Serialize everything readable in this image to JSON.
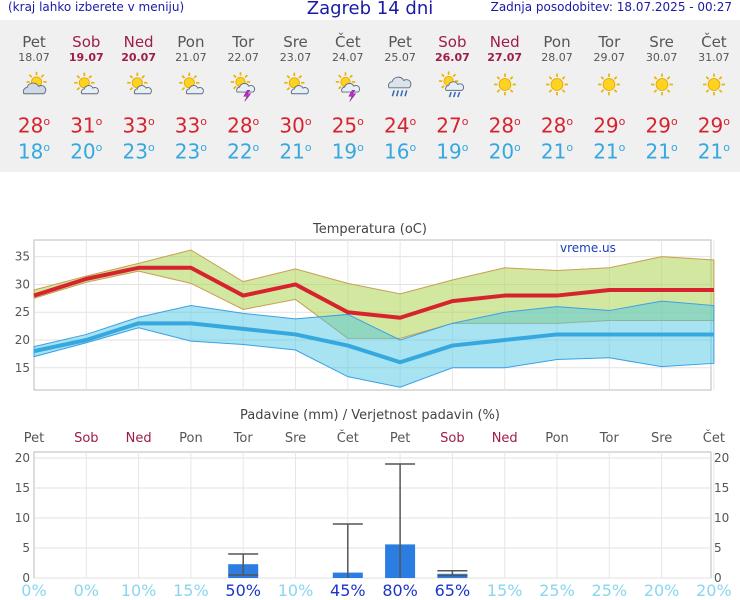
{
  "header": {
    "note": "(kraj lahko izberete v meniju)",
    "title": "Zagreb 14 dni",
    "updated": "Zadnja posodobitev: 18.07.2025 - 00:27"
  },
  "days": [
    {
      "name": "Pet",
      "date": "18.07",
      "weekend": false,
      "icon": "partly-cloudy-icon",
      "tmax": "28",
      "tmin": "18"
    },
    {
      "name": "Sob",
      "date": "19.07",
      "weekend": true,
      "icon": "sun-cloud-icon",
      "tmax": "31",
      "tmin": "20"
    },
    {
      "name": "Ned",
      "date": "20.07",
      "weekend": true,
      "icon": "sun-cloud-icon",
      "tmax": "33",
      "tmin": "23"
    },
    {
      "name": "Pon",
      "date": "21.07",
      "weekend": false,
      "icon": "sun-cloud-icon",
      "tmax": "33",
      "tmin": "23"
    },
    {
      "name": "Tor",
      "date": "22.07",
      "weekend": false,
      "icon": "thunderstorm-sun-icon",
      "tmax": "28",
      "tmin": "22"
    },
    {
      "name": "Sre",
      "date": "23.07",
      "weekend": false,
      "icon": "sun-cloud-icon",
      "tmax": "30",
      "tmin": "21"
    },
    {
      "name": "Čet",
      "date": "24.07",
      "weekend": false,
      "icon": "thunderstorm-sun-icon",
      "tmax": "25",
      "tmin": "19"
    },
    {
      "name": "Pet",
      "date": "25.07",
      "weekend": false,
      "icon": "rain-cloud-icon",
      "tmax": "24",
      "tmin": "16"
    },
    {
      "name": "Sob",
      "date": "26.07",
      "weekend": true,
      "icon": "sun-rain-icon",
      "tmax": "27",
      "tmin": "19"
    },
    {
      "name": "Ned",
      "date": "27.07",
      "weekend": true,
      "icon": "sun-icon",
      "tmax": "28",
      "tmin": "20"
    },
    {
      "name": "Pon",
      "date": "28.07",
      "weekend": false,
      "icon": "sun-icon",
      "tmax": "28",
      "tmin": "21"
    },
    {
      "name": "Tor",
      "date": "29.07",
      "weekend": false,
      "icon": "sun-icon",
      "tmax": "29",
      "tmin": "21"
    },
    {
      "name": "Sre",
      "date": "30.07",
      "weekend": false,
      "icon": "sun-icon",
      "tmax": "29",
      "tmin": "21"
    },
    {
      "name": "Čet",
      "date": "31.07",
      "weekend": false,
      "icon": "sun-icon",
      "tmax": "29",
      "tmin": "21"
    }
  ],
  "degree": "o",
  "colors": {
    "max": "#d6232e",
    "min": "#36a8e0",
    "weekend": "#9e1c4a",
    "bar": "#2b7de1"
  },
  "chart_data": [
    {
      "type": "line",
      "title": "Temperatura (oC)",
      "watermark": "vreme.us",
      "categories": [
        "Pet",
        "Sob",
        "Ned",
        "Pon",
        "Tor",
        "Sre",
        "Čet",
        "Pet",
        "Sob",
        "Ned",
        "Pon",
        "Tor",
        "Sre",
        "Čet"
      ],
      "ylim": [
        11,
        38
      ],
      "yticks": [
        "15",
        "20",
        "25",
        "30",
        "35"
      ],
      "series": [
        {
          "values": [
            28,
            31,
            33,
            33,
            28,
            30,
            25,
            24,
            27,
            28,
            28,
            29,
            29,
            29
          ]
        },
        {
          "values": [
            18,
            20,
            23,
            23,
            22,
            21,
            19,
            16,
            19,
            20,
            21,
            21,
            21,
            21
          ]
        }
      ],
      "bands": [
        {
          "upper": [
            29,
            31.5,
            33.8,
            36.2,
            30.5,
            32.8,
            30.2,
            28.3,
            30.8,
            33,
            32.5,
            33,
            35,
            34.4
          ],
          "lower": [
            27.5,
            30.4,
            32.4,
            30.2,
            25.5,
            27.3,
            20.3,
            20.3,
            23,
            23,
            23,
            23.5,
            23.5,
            23.5
          ]
        },
        {
          "upper": [
            18.8,
            21,
            24.1,
            26.2,
            24.8,
            23.8,
            24.6,
            20,
            23,
            25,
            26,
            25.3,
            27,
            26.2
          ],
          "lower": [
            17,
            19.5,
            22.2,
            19.8,
            19.2,
            18.2,
            13.4,
            11.5,
            15,
            15,
            16.5,
            16.8,
            15.2,
            15.8
          ]
        }
      ]
    },
    {
      "type": "bar",
      "title": "Padavine (mm) / Verjetnost padavin (%)",
      "categories": [
        "Pet",
        "Sob",
        "Ned",
        "Pon",
        "Tor",
        "Sre",
        "Čet",
        "Pet",
        "Sob",
        "Ned",
        "Pon",
        "Tor",
        "Sre",
        "Čet"
      ],
      "ylim": [
        0,
        21
      ],
      "yticks": [
        "0",
        "5",
        "10",
        "15",
        "20"
      ],
      "values": [
        0,
        0,
        0,
        0,
        2.3,
        0,
        0.9,
        5.6,
        0.7,
        0,
        0,
        0,
        0,
        0
      ],
      "error_high": [
        0,
        0,
        0,
        0,
        4,
        0,
        9,
        19,
        1.2,
        0,
        0,
        0,
        0,
        0
      ],
      "error_low": [
        0,
        0,
        0,
        0,
        0.5,
        0,
        0,
        0,
        0.4,
        0,
        0,
        0,
        0,
        0
      ],
      "probability": [
        "0%",
        "0%",
        "10%",
        "15%",
        "50%",
        "10%",
        "45%",
        "80%",
        "65%",
        "15%",
        "25%",
        "25%",
        "20%",
        "20%"
      ]
    }
  ]
}
